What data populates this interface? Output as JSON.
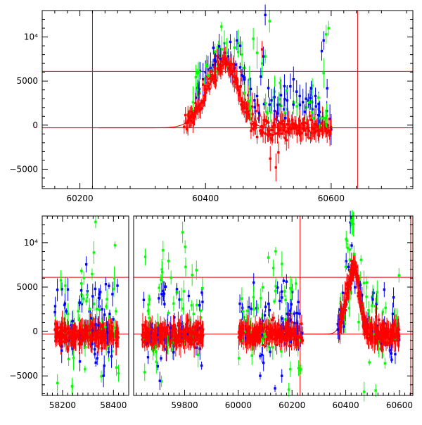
{
  "chart_data": [
    {
      "type": "scatter",
      "title": "",
      "xlabel": "",
      "ylabel": "",
      "xlim": [
        60140,
        60730
      ],
      "ylim": [
        -7200,
        13000
      ],
      "x_ticks": [
        {
          "value": 60200,
          "label": "60200"
        },
        {
          "value": 60400,
          "label": "60400"
        },
        {
          "value": 60600,
          "label": "60600"
        }
      ],
      "y_ticks": [
        {
          "value": -5000,
          "label": "−5000"
        },
        {
          "value": 0,
          "label": "0"
        },
        {
          "value": 5000,
          "label": "5000"
        },
        {
          "value": 10000,
          "label": "10⁴"
        }
      ],
      "reference_lines": {
        "horizontal": [
          6100,
          -300
        ],
        "vertical": [
          60220,
          60642
        ]
      },
      "model_curve": {
        "peak_x": 60432,
        "peak_y": 7000,
        "baseline": -300,
        "rise_width": 28,
        "decay_width": 20
      },
      "series": [
        {
          "color": "#00ff00",
          "points": [
            [
              60372,
              1200
            ],
            [
              60380,
              2600
            ],
            [
              60390,
              3800
            ],
            [
              60398,
              4600
            ],
            [
              60402,
              5200
            ],
            [
              60406,
              5600
            ],
            [
              60410,
              6200
            ],
            [
              60414,
              6800
            ],
            [
              60418,
              7400
            ],
            [
              60422,
              7900
            ],
            [
              60426,
              8600
            ],
            [
              60430,
              9300
            ],
            [
              60434,
              8200
            ],
            [
              60440,
              7200
            ],
            [
              60446,
              8800
            ],
            [
              60452,
              9300
            ],
            [
              60458,
              8000
            ],
            [
              60462,
              6500
            ],
            [
              60470,
              5200
            ],
            [
              60476,
              9800
            ],
            [
              60482,
              8200
            ],
            [
              60490,
              7000
            ],
            [
              60495,
              7800
            ],
            [
              60502,
              11800
            ],
            [
              60510,
              3800
            ],
            [
              60520,
              2200
            ],
            [
              60530,
              1800
            ],
            [
              60540,
              2600
            ],
            [
              60550,
              2400
            ],
            [
              60560,
              2000
            ],
            [
              60570,
              2600
            ],
            [
              60580,
              1800
            ],
            [
              60588,
              5900
            ],
            [
              60592,
              10300
            ],
            [
              60596,
              11000
            ],
            [
              60600,
              -300
            ]
          ]
        },
        {
          "color": "#0000ff",
          "points": [
            [
              60385,
              3100
            ],
            [
              60390,
              4100
            ],
            [
              60396,
              5200
            ],
            [
              60400,
              6000
            ],
            [
              60404,
              6300
            ],
            [
              60408,
              6500
            ],
            [
              60412,
              6800
            ],
            [
              60416,
              7200
            ],
            [
              60420,
              7700
            ],
            [
              60424,
              7500
            ],
            [
              60430,
              8200
            ],
            [
              60436,
              7800
            ],
            [
              60440,
              6600
            ],
            [
              60446,
              6400
            ],
            [
              60450,
              9600
            ],
            [
              60455,
              9000
            ],
            [
              60462,
              5400
            ],
            [
              60468,
              3400
            ],
            [
              60472,
              4100
            ],
            [
              60478,
              2800
            ],
            [
              60482,
              3300
            ],
            [
              60488,
              5500
            ],
            [
              60492,
              7800
            ],
            [
              60495,
              12500
            ],
            [
              60500,
              4200
            ],
            [
              60505,
              2800
            ],
            [
              60510,
              1600
            ],
            [
              60515,
              2300
            ],
            [
              60520,
              3400
            ],
            [
              60525,
              1800
            ],
            [
              60530,
              2800
            ],
            [
              60535,
              4400
            ],
            [
              60540,
              5200
            ],
            [
              60545,
              3800
            ],
            [
              60550,
              3300
            ],
            [
              60555,
              2600
            ],
            [
              60560,
              3000
            ],
            [
              60565,
              2400
            ],
            [
              60570,
              1800
            ],
            [
              60575,
              3300
            ],
            [
              60580,
              2400
            ],
            [
              60585,
              8400
            ],
            [
              60588,
              9600
            ],
            [
              60593,
              1600
            ],
            [
              60598,
              700
            ],
            [
              60600,
              -500
            ]
          ]
        },
        {
          "color": "#ff0000",
          "points": [
            [
              60366,
              -200
            ],
            [
              60372,
              500
            ],
            [
              60378,
              1500
            ],
            [
              60384,
              2500
            ],
            [
              60390,
              3600
            ],
            [
              60396,
              4600
            ],
            [
              60402,
              5500
            ],
            [
              60408,
              6100
            ],
            [
              60414,
              6600
            ],
            [
              60420,
              6900
            ],
            [
              60426,
              7200
            ],
            [
              60432,
              7500
            ],
            [
              60438,
              6800
            ],
            [
              60444,
              6100
            ],
            [
              60450,
              5300
            ],
            [
              60456,
              4400
            ],
            [
              60462,
              3600
            ],
            [
              60468,
              2700
            ],
            [
              60474,
              2100
            ],
            [
              60480,
              1600
            ],
            [
              60486,
              1100
            ],
            [
              60490,
              8600
            ],
            [
              60494,
              600
            ],
            [
              60500,
              300
            ],
            [
              60503,
              -3800
            ],
            [
              60507,
              -1100
            ],
            [
              60512,
              -4800
            ],
            [
              60516,
              -3100
            ],
            [
              60520,
              200
            ],
            [
              60526,
              -200
            ],
            [
              60532,
              -900
            ],
            [
              60538,
              600
            ],
            [
              60544,
              -100
            ],
            [
              60550,
              500
            ],
            [
              60556,
              0
            ],
            [
              60562,
              -200
            ],
            [
              60568,
              600
            ],
            [
              60574,
              100
            ],
            [
              60580,
              -100
            ],
            [
              60586,
              300
            ],
            [
              60592,
              -400
            ],
            [
              60598,
              -600
            ]
          ]
        }
      ]
    },
    {
      "type": "scatter",
      "title": "",
      "xlabel": "",
      "ylabel": "",
      "ylim": [
        -7200,
        13000
      ],
      "x_ticks": [
        {
          "value": 58200,
          "label": "58200"
        },
        {
          "value": 58400,
          "label": "58400"
        },
        {
          "value": 59800,
          "label": "59800"
        },
        {
          "value": 60000,
          "label": "60000"
        },
        {
          "value": 60200,
          "label": "60200"
        },
        {
          "value": 60400,
          "label": "60400"
        },
        {
          "value": 60600,
          "label": "60600"
        }
      ],
      "y_ticks": [
        {
          "value": -5000,
          "label": "−5000"
        },
        {
          "value": 0,
          "label": "0"
        },
        {
          "value": 5000,
          "label": "5000"
        },
        {
          "value": 10000,
          "label": "10⁴"
        }
      ],
      "segments": [
        {
          "xlim": [
            58120,
            58460
          ],
          "data_range": [
            58170,
            58420
          ]
        },
        {
          "xlim": [
            59610,
            60650
          ],
          "data_ranges": [
            [
              59640,
              59870
            ],
            [
              60000,
              60240
            ],
            [
              60370,
              60600
            ]
          ]
        }
      ],
      "reference_lines": {
        "horizontal": [
          6100,
          -300
        ],
        "vertical": [
          60230,
          60642
        ]
      },
      "model_curve": {
        "peak_x": 60432,
        "peak_y": 7000,
        "baseline": -300,
        "rise_width": 28,
        "decay_width": 20
      }
    }
  ]
}
